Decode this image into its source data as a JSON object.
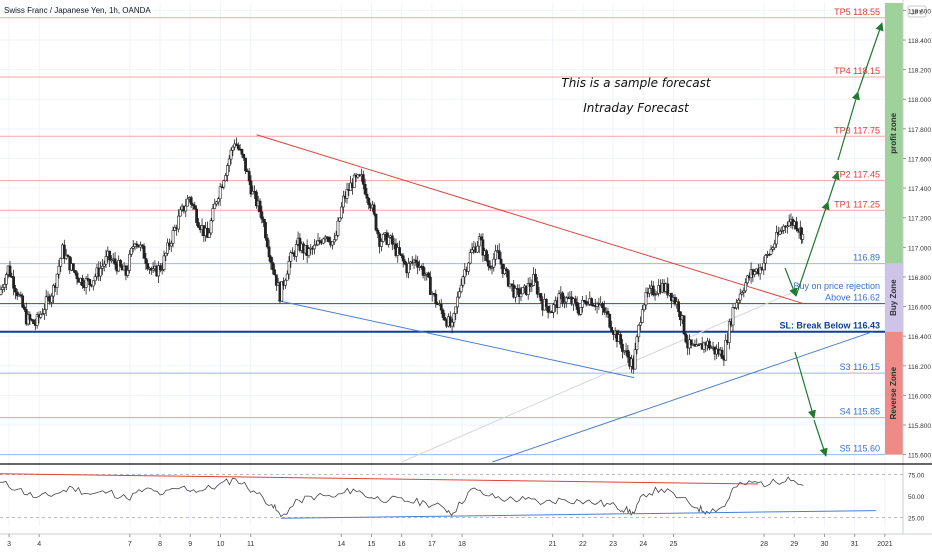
{
  "chart_data": {
    "type": "candlestick",
    "title": "Swiss Franc / Japanese Yen, 1h, OANDA",
    "currency_badge": "JPY",
    "ylim": [
      115.55,
      118.65
    ],
    "price_ticks": [
      118.6,
      118.4,
      118.2,
      118.0,
      117.8,
      117.6,
      117.4,
      117.2,
      117.0,
      116.8,
      116.6,
      116.4,
      116.2,
      116.0,
      115.8,
      115.6
    ],
    "price_tick_labels": [
      "118.600",
      "118.400",
      "118.200",
      "118.000",
      "117.800",
      "117.600",
      "117.400",
      "117.200",
      "117.000",
      "116.800",
      "116.600",
      "116.400",
      "116.200",
      "116.000",
      "115.800",
      "115.600"
    ],
    "x_ticks": [
      {
        "label": "3",
        "day": 3
      },
      {
        "label": "4",
        "day": 4
      },
      {
        "label": "7",
        "day": 7
      },
      {
        "label": "8",
        "day": 8
      },
      {
        "label": "9",
        "day": 9
      },
      {
        "label": "10",
        "day": 10
      },
      {
        "label": "11",
        "day": 11
      },
      {
        "label": "14",
        "day": 14
      },
      {
        "label": "15",
        "day": 15
      },
      {
        "label": "16",
        "day": 16
      },
      {
        "label": "17",
        "day": 17
      },
      {
        "label": "18",
        "day": 18
      },
      {
        "label": "21",
        "day": 21
      },
      {
        "label": "22",
        "day": 22
      },
      {
        "label": "23",
        "day": 23
      },
      {
        "label": "24",
        "day": 24
      },
      {
        "label": "25",
        "day": 25
      },
      {
        "label": "28",
        "day": 28
      },
      {
        "label": "29",
        "day": 29
      },
      {
        "label": "30",
        "day": 30
      },
      {
        "label": "31",
        "day": 31
      },
      {
        "label": "2021",
        "day": 32
      }
    ],
    "price_path": [
      [
        2.7,
        116.68
      ],
      [
        3.0,
        116.86
      ],
      [
        3.3,
        116.7
      ],
      [
        3.6,
        116.52
      ],
      [
        3.9,
        116.48
      ],
      [
        4.2,
        116.6
      ],
      [
        4.5,
        116.72
      ],
      [
        4.8,
        116.98
      ],
      [
        5.1,
        116.86
      ],
      [
        5.4,
        116.78
      ],
      [
        5.7,
        116.76
      ],
      [
        6.0,
        116.84
      ],
      [
        6.3,
        116.93
      ],
      [
        6.6,
        116.88
      ],
      [
        6.9,
        116.82
      ],
      [
        7.2,
        117.06
      ],
      [
        7.5,
        116.95
      ],
      [
        7.8,
        116.82
      ],
      [
        8.1,
        116.88
      ],
      [
        8.4,
        117.06
      ],
      [
        8.7,
        117.22
      ],
      [
        9.0,
        117.34
      ],
      [
        9.3,
        117.18
      ],
      [
        9.6,
        117.06
      ],
      [
        9.9,
        117.33
      ],
      [
        10.2,
        117.52
      ],
      [
        10.5,
        117.72
      ],
      [
        10.8,
        117.58
      ],
      [
        11.1,
        117.36
      ],
      [
        11.4,
        117.22
      ],
      [
        11.7,
        116.92
      ],
      [
        12.0,
        116.68
      ],
      [
        12.3,
        116.9
      ],
      [
        12.6,
        117.02
      ],
      [
        12.9,
        116.96
      ],
      [
        13.2,
        117.0
      ],
      [
        13.5,
        117.1
      ],
      [
        13.8,
        117.02
      ],
      [
        14.1,
        117.32
      ],
      [
        14.4,
        117.44
      ],
      [
        14.7,
        117.46
      ],
      [
        15.0,
        117.3
      ],
      [
        15.3,
        117.05
      ],
      [
        15.6,
        117.06
      ],
      [
        15.9,
        116.96
      ],
      [
        16.2,
        116.86
      ],
      [
        16.5,
        116.92
      ],
      [
        16.8,
        116.82
      ],
      [
        17.1,
        116.66
      ],
      [
        17.4,
        116.55
      ],
      [
        17.7,
        116.45
      ],
      [
        18.0,
        116.78
      ],
      [
        18.3,
        116.95
      ],
      [
        18.6,
        117.05
      ],
      [
        18.9,
        116.88
      ],
      [
        19.2,
        116.95
      ],
      [
        19.5,
        116.8
      ],
      [
        19.8,
        116.68
      ],
      [
        20.1,
        116.7
      ],
      [
        20.4,
        116.78
      ],
      [
        20.7,
        116.62
      ],
      [
        21.0,
        116.58
      ],
      [
        21.3,
        116.66
      ],
      [
        21.6,
        116.64
      ],
      [
        21.9,
        116.58
      ],
      [
        22.2,
        116.66
      ],
      [
        22.5,
        116.62
      ],
      [
        22.8,
        116.55
      ],
      [
        23.1,
        116.42
      ],
      [
        23.4,
        116.3
      ],
      [
        23.7,
        116.2
      ],
      [
        24.0,
        116.62
      ],
      [
        24.3,
        116.7
      ],
      [
        24.6,
        116.74
      ],
      [
        24.9,
        116.7
      ],
      [
        25.2,
        116.6
      ],
      [
        25.5,
        116.34
      ],
      [
        25.8,
        116.3
      ],
      [
        26.1,
        116.36
      ],
      [
        26.4,
        116.3
      ],
      [
        26.7,
        116.28
      ],
      [
        27.0,
        116.58
      ],
      [
        27.3,
        116.72
      ],
      [
        27.6,
        116.82
      ],
      [
        27.9,
        116.86
      ],
      [
        28.2,
        116.96
      ],
      [
        28.5,
        117.08
      ],
      [
        28.8,
        117.18
      ],
      [
        29.1,
        117.16
      ],
      [
        29.3,
        117.08
      ]
    ],
    "resistance_line": {
      "from": [
        11.2,
        117.76
      ],
      "to": [
        29.3,
        116.62
      ]
    },
    "lower_trend_line": {
      "from": [
        11.9,
        116.64
      ],
      "to": [
        23.7,
        116.12
      ]
    },
    "rising_support_line": {
      "from": [
        19.0,
        115.55
      ],
      "to": [
        31.6,
        116.43
      ]
    },
    "levels": [
      {
        "price": 118.55,
        "label": "TP5 118.55",
        "color": "#e53935",
        "line": "#f2a7a3"
      },
      {
        "price": 118.15,
        "label": "TP4 118.15",
        "color": "#e53935",
        "line": "#f2a7a3"
      },
      {
        "price": 117.75,
        "label": "TP3 117.75",
        "color": "#e53935",
        "line": "#f2a7a3"
      },
      {
        "price": 117.45,
        "label": "TP2 117.45",
        "color": "#e53935",
        "line": "#f2a7a3"
      },
      {
        "price": 117.25,
        "label": "TP1 117.25",
        "color": "#e53935",
        "line": "#f2a7a3"
      },
      {
        "price": 116.89,
        "label": "116.89",
        "color": "#3a6fd0",
        "line": "#9bb7e6"
      },
      {
        "price": 116.62,
        "label": "Above 116.62",
        "color": "#3a6fd0",
        "line": "#1e4fb4"
      },
      {
        "price": 116.43,
        "label": "SL: Break Below 116.43",
        "color": "#0d3f9f",
        "line": "#0d3f9f",
        "bold": true
      },
      {
        "price": 116.15,
        "label": "S3 116.15",
        "color": "#3a6fd0",
        "line": "#9bb7e6"
      },
      {
        "price": 115.85,
        "label": "S4 115.85",
        "color": "#3a6fd0",
        "line": "#9bb7e6"
      },
      {
        "price": 115.6,
        "label": "S5 115.60",
        "color": "#3a6fd0",
        "line": "#9bb7e6"
      }
    ],
    "buy_on_rejection_label": "Buy on price rejection",
    "zones": [
      {
        "label": "profit zone",
        "from": 116.89,
        "to": 118.65,
        "color": "#9fd19b"
      },
      {
        "label": "Buy Zone",
        "from": 116.43,
        "to": 116.89,
        "color": "#cdc4e8"
      },
      {
        "label": "Reverse Zone",
        "from": 115.6,
        "to": 116.43,
        "color": "#ef8b86"
      }
    ],
    "annotations": [
      "This is a sample forecast",
      "Intraday Forecast"
    ],
    "rsi": {
      "ylim": [
        15,
        85
      ],
      "ticks": [
        75,
        50,
        25
      ],
      "tick_labels": [
        "75.00",
        "50.00",
        "25.00"
      ],
      "values": [
        [
          2.7,
          66
        ],
        [
          3.3,
          58
        ],
        [
          3.9,
          48
        ],
        [
          4.5,
          52
        ],
        [
          5.1,
          60
        ],
        [
          5.7,
          52
        ],
        [
          6.3,
          55
        ],
        [
          6.9,
          47
        ],
        [
          7.5,
          58
        ],
        [
          8.1,
          52
        ],
        [
          8.7,
          60
        ],
        [
          9.3,
          56
        ],
        [
          9.9,
          62
        ],
        [
          10.5,
          70
        ],
        [
          11.1,
          56
        ],
        [
          11.7,
          40
        ],
        [
          12.0,
          26
        ],
        [
          12.6,
          45
        ],
        [
          13.2,
          50
        ],
        [
          13.8,
          49
        ],
        [
          14.4,
          58
        ],
        [
          15.0,
          48
        ],
        [
          15.6,
          46
        ],
        [
          16.2,
          44
        ],
        [
          16.8,
          42
        ],
        [
          17.4,
          36
        ],
        [
          17.7,
          30
        ],
        [
          18.3,
          58
        ],
        [
          18.9,
          50
        ],
        [
          19.5,
          46
        ],
        [
          20.1,
          46
        ],
        [
          20.7,
          42
        ],
        [
          21.3,
          46
        ],
        [
          21.9,
          44
        ],
        [
          22.5,
          42
        ],
        [
          23.1,
          38
        ],
        [
          23.4,
          34
        ],
        [
          23.7,
          30
        ],
        [
          24.0,
          52
        ],
        [
          24.6,
          58
        ],
        [
          25.2,
          48
        ],
        [
          25.8,
          36
        ],
        [
          26.1,
          32
        ],
        [
          26.7,
          38
        ],
        [
          27.0,
          60
        ],
        [
          27.6,
          66
        ],
        [
          28.2,
          64
        ],
        [
          28.8,
          72
        ],
        [
          29.3,
          62
        ]
      ],
      "upper_trend": {
        "from": [
          2.7,
          76
        ],
        "to": [
          27.8,
          64
        ]
      },
      "lower_trend": {
        "from": [
          12.0,
          24
        ],
        "to": [
          31.7,
          33
        ]
      }
    }
  }
}
